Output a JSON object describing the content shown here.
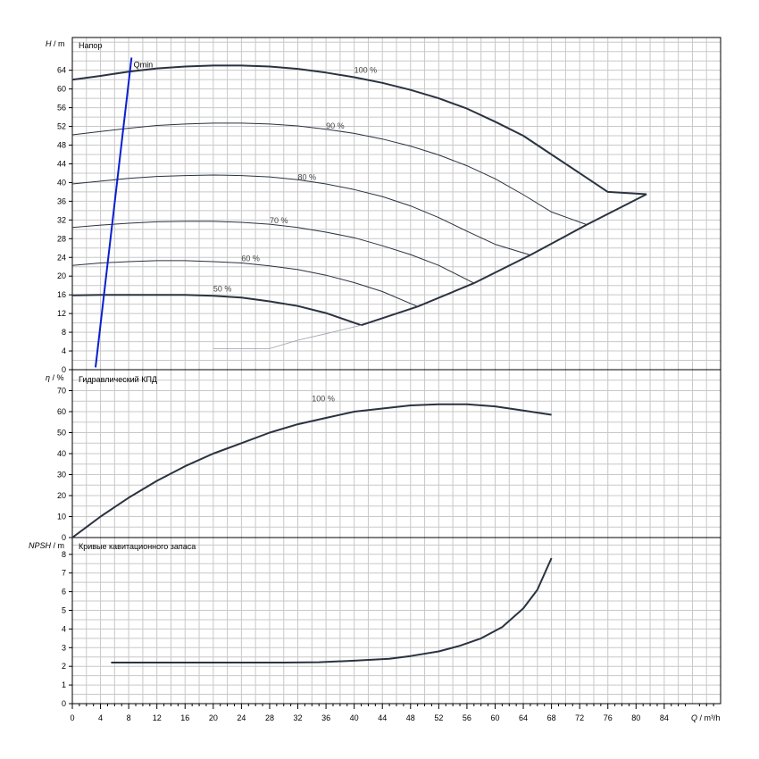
{
  "x_axis": {
    "label_q": "Q",
    "label_unit": " / m³/h",
    "ticks": [
      0,
      4,
      8,
      12,
      16,
      20,
      24,
      28,
      32,
      36,
      40,
      44,
      48,
      52,
      56,
      60,
      64,
      68,
      72,
      76,
      80,
      84
    ],
    "range": [
      0,
      92
    ]
  },
  "panels": {
    "head": {
      "ylabel_var": "H",
      "ylabel_unit": " / m",
      "title": "Напор",
      "ylim": [
        0,
        71
      ],
      "ticks": [
        0,
        4,
        8,
        12,
        16,
        20,
        24,
        28,
        32,
        36,
        40,
        44,
        48,
        52,
        56,
        60,
        64
      ]
    },
    "efficiency": {
      "ylabel_var": "η",
      "ylabel_unit": " / %",
      "title": "Гидравлический КПД",
      "ylim": [
        0,
        80
      ],
      "ticks": [
        0,
        10,
        20,
        30,
        40,
        50,
        60,
        70
      ]
    },
    "npsh": {
      "ylabel_var": "NPSH",
      "ylabel_unit": " / m",
      "title": "Кривые кавитационного запаса",
      "ylim": [
        0,
        8.9
      ],
      "ticks": [
        0,
        1,
        2,
        3,
        4,
        5,
        6,
        7,
        8
      ]
    }
  },
  "chart_data": [
    {
      "type": "line",
      "panel": "head",
      "ylabel": "H / m",
      "xlabel": "Q / m³/h",
      "series": [
        {
          "name": "100 %",
          "x": [
            0,
            4,
            8,
            12,
            16,
            20,
            24,
            28,
            32,
            36,
            40,
            44,
            48,
            52,
            56,
            60,
            64,
            68,
            72,
            76,
            81.5
          ],
          "y": [
            62,
            62.8,
            63.7,
            64.4,
            64.8,
            65,
            65,
            64.8,
            64.3,
            63.5,
            62.5,
            61.3,
            59.8,
            58,
            55.8,
            53,
            50,
            46,
            42,
            38,
            37.5
          ]
        },
        {
          "name": "90 %",
          "x": [
            0,
            4,
            8,
            12,
            16,
            20,
            24,
            28,
            32,
            36,
            40,
            44,
            48,
            52,
            56,
            60,
            64,
            68,
            73
          ],
          "y": [
            50.2,
            50.9,
            51.6,
            52.2,
            52.5,
            52.7,
            52.7,
            52.5,
            52.1,
            51.4,
            50.5,
            49.3,
            47.8,
            45.9,
            43.6,
            40.8,
            37.4,
            33.7,
            31
          ]
        },
        {
          "name": "80 %",
          "x": [
            0,
            4,
            8,
            12,
            16,
            20,
            24,
            28,
            32,
            36,
            40,
            44,
            48,
            52,
            56,
            60,
            65
          ],
          "y": [
            39.7,
            40.3,
            40.9,
            41.3,
            41.5,
            41.6,
            41.5,
            41.2,
            40.6,
            39.7,
            38.5,
            37,
            35,
            32.5,
            29.6,
            26.8,
            24.5
          ]
        },
        {
          "name": "70 %",
          "x": [
            0,
            4,
            8,
            12,
            16,
            20,
            24,
            28,
            32,
            36,
            40,
            44,
            48,
            52,
            57
          ],
          "y": [
            30.4,
            30.9,
            31.3,
            31.6,
            31.7,
            31.7,
            31.5,
            31.1,
            30.4,
            29.4,
            28.2,
            26.5,
            24.6,
            22.3,
            18.5
          ]
        },
        {
          "name": "60 %",
          "x": [
            0,
            4,
            8,
            12,
            16,
            20,
            24,
            28,
            32,
            36,
            40,
            44,
            49
          ],
          "y": [
            22.3,
            22.8,
            23.1,
            23.3,
            23.3,
            23.1,
            22.8,
            22.2,
            21.4,
            20.2,
            18.6,
            16.7,
            13.5
          ]
        },
        {
          "name": "50 %",
          "x": [
            0,
            4,
            8,
            12,
            16,
            20,
            24,
            28,
            32,
            36,
            41
          ],
          "y": [
            15.9,
            16,
            16,
            16,
            16,
            15.8,
            15.4,
            14.6,
            13.6,
            12.1,
            9.5
          ]
        },
        {
          "name": "",
          "x": [
            41,
            49,
            57,
            65,
            73,
            81.5
          ],
          "y": [
            9.5,
            13.5,
            18.5,
            24.5,
            31,
            37.5
          ]
        },
        {
          "name": "",
          "x": [
            28,
            32,
            36,
            41
          ],
          "y": [
            4.5,
            6.3,
            7.7,
            9.5
          ]
        },
        {
          "name": "",
          "x": [
            20,
            28
          ],
          "y": [
            4.5,
            4.5
          ]
        },
        {
          "name": "Qmin",
          "x": [
            3.3,
            8.4
          ],
          "y": [
            0.5,
            66.7
          ]
        }
      ],
      "annotations": [
        {
          "text": "100 %",
          "x": 40,
          "y": 63.5
        },
        {
          "text": "90 %",
          "x": 36,
          "y": 51.5
        },
        {
          "text": "80 %",
          "x": 32,
          "y": 40.6
        },
        {
          "text": "70 %",
          "x": 28,
          "y": 31.3
        },
        {
          "text": "60 %",
          "x": 24,
          "y": 23.2
        },
        {
          "text": "50 %",
          "x": 20,
          "y": 16.7
        },
        {
          "text": "Qmin",
          "x": 8.7,
          "y": 64.6
        }
      ]
    },
    {
      "type": "line",
      "panel": "efficiency",
      "ylabel": "η / %",
      "xlabel": "Q / m³/h",
      "series": [
        {
          "name": "100 %",
          "x": [
            0,
            2,
            4,
            8,
            12,
            16,
            20,
            24,
            28,
            32,
            36,
            40,
            44,
            48,
            52,
            56,
            60,
            64,
            68
          ],
          "y": [
            0,
            5,
            10,
            19,
            27,
            34,
            40,
            45,
            50,
            54,
            57,
            60,
            61.5,
            63,
            63.5,
            63.5,
            62.5,
            60.5,
            58.5
          ]
        }
      ],
      "annotations": [
        {
          "text": "100 %",
          "x": 34,
          "y": 65
        }
      ]
    },
    {
      "type": "line",
      "panel": "npsh",
      "ylabel": "NPSH / m",
      "xlabel": "Q / m³/h",
      "series": [
        {
          "name": "",
          "x": [
            5.5,
            10,
            15,
            20,
            25,
            30,
            35,
            40,
            45,
            48,
            52,
            55,
            58,
            61,
            64,
            66,
            68
          ],
          "y": [
            2.2,
            2.2,
            2.2,
            2.2,
            2.2,
            2.2,
            2.22,
            2.3,
            2.4,
            2.55,
            2.8,
            3.1,
            3.5,
            4.1,
            5.1,
            6.1,
            7.8
          ]
        }
      ],
      "annotations": []
    }
  ]
}
